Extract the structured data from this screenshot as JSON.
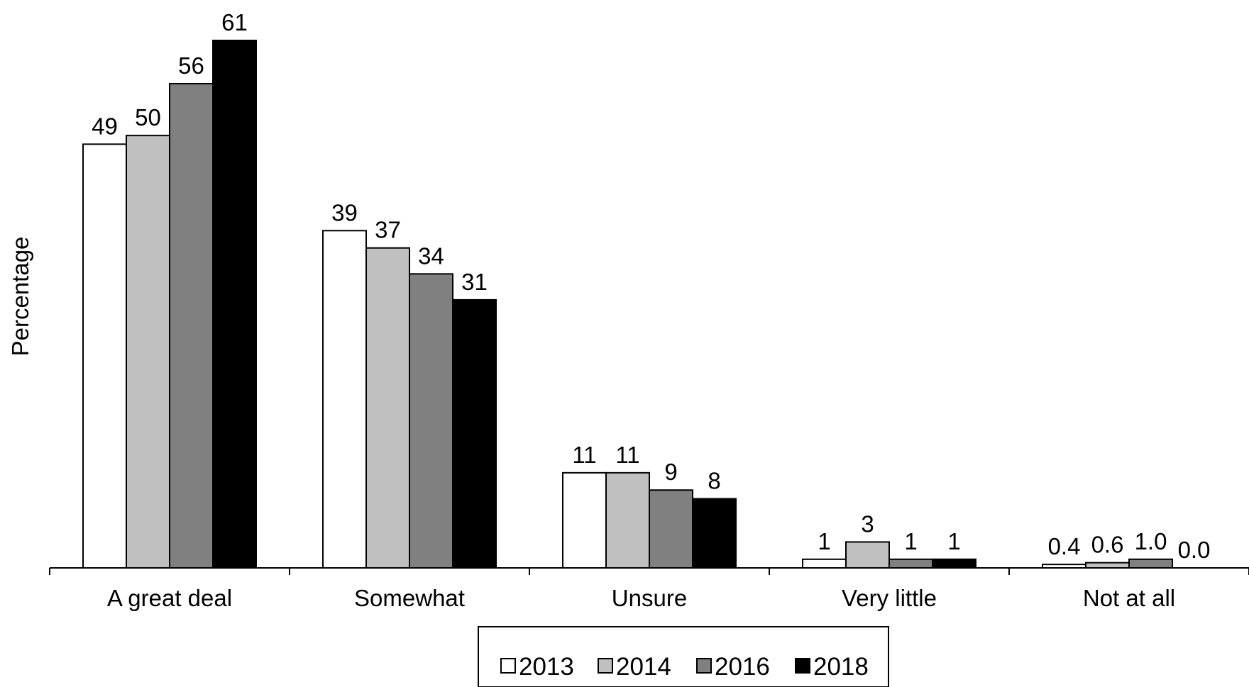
{
  "chart_data": {
    "type": "bar",
    "title": "",
    "xlabel": "",
    "ylabel": "Percentage",
    "ylim": [
      0,
      61
    ],
    "grid": false,
    "legend_position": "bottom-center",
    "categories": [
      "A great deal",
      "Somewhat",
      "Unsure",
      "Very little",
      "Not at all"
    ],
    "series": [
      {
        "name": "2013",
        "color": "#ffffff",
        "values": [
          49,
          39,
          11,
          1,
          0.4
        ],
        "labels": [
          "49",
          "39",
          "11",
          "1",
          "0.4"
        ]
      },
      {
        "name": "2014",
        "color": "#c0c0c0",
        "values": [
          50,
          37,
          11,
          3,
          0.6
        ],
        "labels": [
          "50",
          "37",
          "11",
          "3",
          "0.6"
        ]
      },
      {
        "name": "2016",
        "color": "#808080",
        "values": [
          56,
          34,
          9,
          1,
          1.0
        ],
        "labels": [
          "56",
          "34",
          "9",
          "1",
          "1.0"
        ]
      },
      {
        "name": "2018",
        "color": "#000000",
        "values": [
          61,
          31,
          8,
          1,
          0.0
        ],
        "labels": [
          "61",
          "31",
          "8",
          "1",
          "0.0"
        ]
      }
    ]
  }
}
